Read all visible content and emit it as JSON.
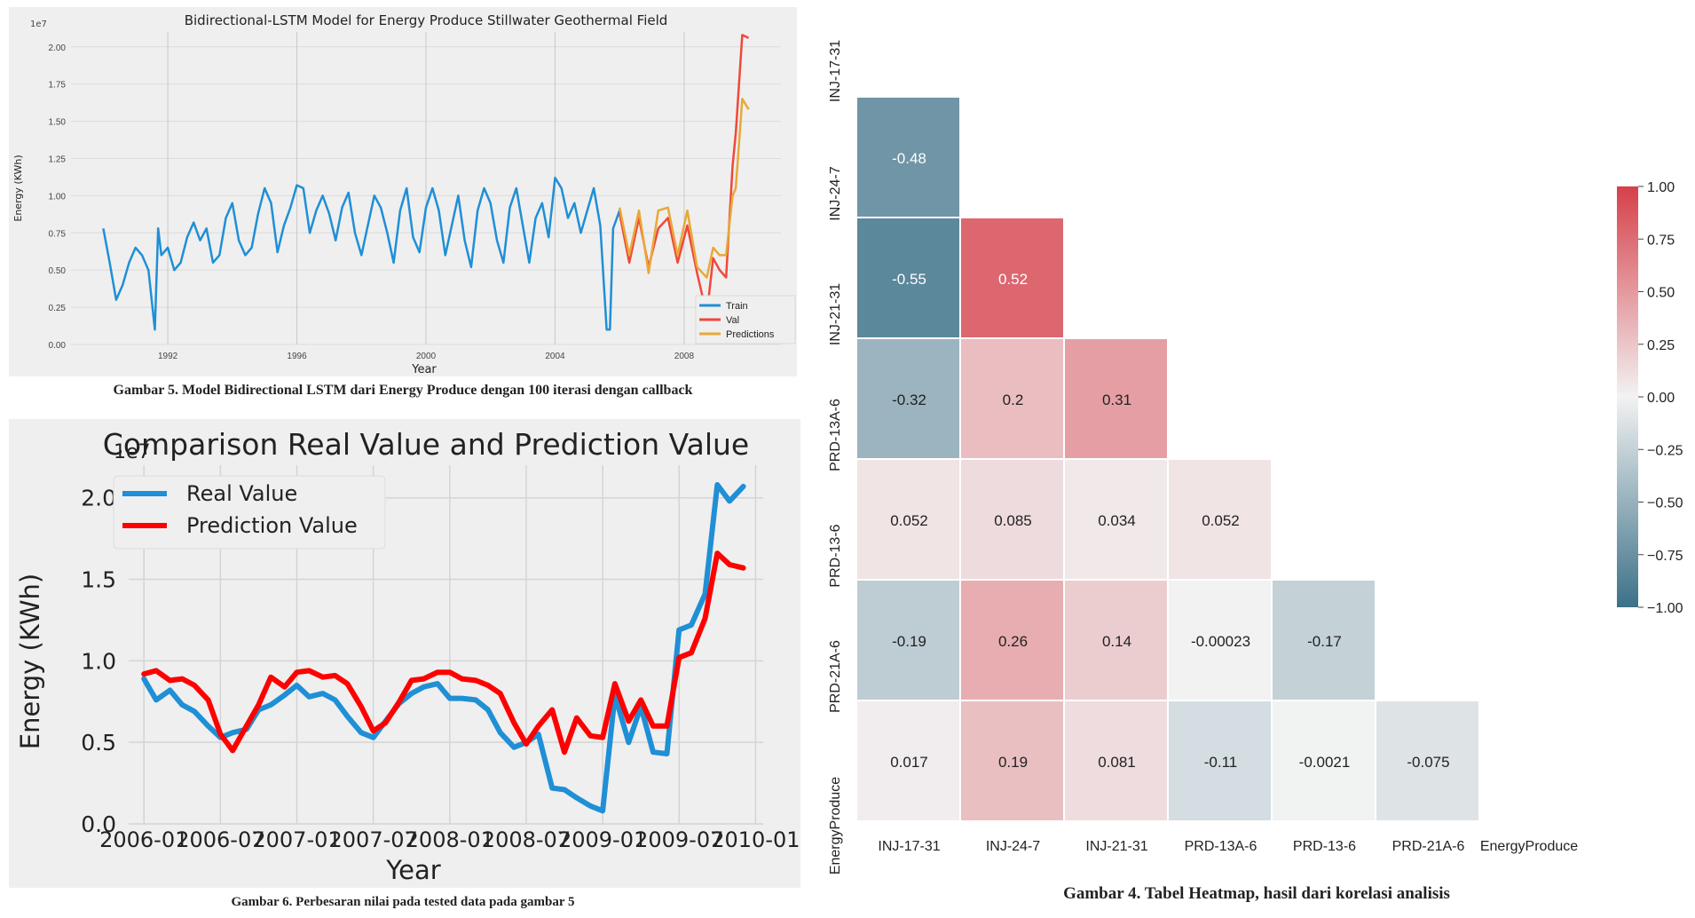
{
  "chart_data": [
    {
      "type": "line",
      "title": "Bidirectional-LSTM Model for Energy Produce Stillwater Geothermal Field",
      "xlabel": "Year",
      "ylabel": "Energy (KWh)",
      "y_offset_label": "1e7",
      "xticks": [
        "1992",
        "1996",
        "2000",
        "2004",
        "2008"
      ],
      "yticks": [
        "0.00",
        "0.25",
        "0.50",
        "0.75",
        "1.00",
        "1.25",
        "1.50",
        "1.75",
        "2.00"
      ],
      "ylim": [
        0,
        2.1
      ],
      "legend": "bottom-right",
      "series": [
        {
          "name": "Train",
          "color": "#1f8fd6",
          "x": [
            1990.0,
            1990.2,
            1990.4,
            1990.6,
            1990.8,
            1991.0,
            1991.2,
            1991.4,
            1991.6,
            1991.7,
            1991.8,
            1992.0,
            1992.2,
            1992.4,
            1992.6,
            1992.8,
            1993.0,
            1993.2,
            1993.4,
            1993.6,
            1993.8,
            1994.0,
            1994.2,
            1994.4,
            1994.6,
            1994.8,
            1995.0,
            1995.2,
            1995.4,
            1995.6,
            1995.8,
            1996.0,
            1996.2,
            1996.4,
            1996.6,
            1996.8,
            1997.0,
            1997.2,
            1997.4,
            1997.6,
            1997.8,
            1998.0,
            1998.2,
            1998.4,
            1998.6,
            1998.8,
            1999.0,
            1999.2,
            1999.4,
            1999.6,
            1999.8,
            2000.0,
            2000.2,
            2000.4,
            2000.6,
            2000.8,
            2001.0,
            2001.2,
            2001.4,
            2001.6,
            2001.8,
            2002.0,
            2002.2,
            2002.4,
            2002.6,
            2002.8,
            2003.0,
            2003.2,
            2003.4,
            2003.6,
            2003.8,
            2004.0,
            2004.2,
            2004.4,
            2004.6,
            2004.8,
            2005.0,
            2005.2,
            2005.4,
            2005.6,
            2005.7,
            2005.8,
            2006.0
          ],
          "values": [
            0.78,
            0.55,
            0.3,
            0.4,
            0.55,
            0.65,
            0.6,
            0.5,
            0.1,
            0.78,
            0.6,
            0.65,
            0.5,
            0.55,
            0.72,
            0.82,
            0.7,
            0.78,
            0.55,
            0.6,
            0.85,
            0.95,
            0.7,
            0.6,
            0.65,
            0.88,
            1.05,
            0.95,
            0.62,
            0.8,
            0.92,
            1.07,
            1.05,
            0.75,
            0.9,
            1.0,
            0.88,
            0.7,
            0.92,
            1.02,
            0.75,
            0.6,
            0.8,
            1.0,
            0.92,
            0.75,
            0.55,
            0.9,
            1.05,
            0.72,
            0.62,
            0.92,
            1.05,
            0.9,
            0.6,
            0.8,
            1.0,
            0.7,
            0.52,
            0.9,
            1.05,
            0.95,
            0.7,
            0.55,
            0.92,
            1.05,
            0.8,
            0.55,
            0.85,
            0.95,
            0.72,
            1.12,
            1.05,
            0.85,
            0.95,
            0.75,
            0.9,
            1.05,
            0.8,
            0.1,
            0.1,
            0.78,
            0.9
          ]
        },
        {
          "name": "Val",
          "color": "#f0483a",
          "x": [
            2006.0,
            2006.3,
            2006.6,
            2006.9,
            2007.2,
            2007.5,
            2007.8,
            2008.1,
            2008.4,
            2008.7,
            2008.9,
            2009.1,
            2009.3,
            2009.5,
            2009.6,
            2009.8,
            2010.0
          ],
          "values": [
            0.88,
            0.55,
            0.85,
            0.52,
            0.78,
            0.85,
            0.55,
            0.8,
            0.48,
            0.2,
            0.58,
            0.5,
            0.45,
            1.2,
            1.42,
            2.08,
            2.06
          ]
        },
        {
          "name": "Predictions",
          "color": "#e8a838",
          "x": [
            2006.0,
            2006.3,
            2006.6,
            2006.9,
            2007.2,
            2007.5,
            2007.8,
            2008.1,
            2008.4,
            2008.7,
            2008.9,
            2009.1,
            2009.3,
            2009.5,
            2009.6,
            2009.8,
            2010.0
          ],
          "values": [
            0.92,
            0.6,
            0.9,
            0.48,
            0.9,
            0.92,
            0.6,
            0.9,
            0.52,
            0.45,
            0.65,
            0.6,
            0.6,
            1.0,
            1.05,
            1.65,
            1.58
          ]
        }
      ],
      "caption": "Gambar 5. Model Bidirectional LSTM dari Energy Produce dengan 100 iterasi dengan callback"
    },
    {
      "type": "line",
      "title": "Comparison Real Value and Prediction Value",
      "xlabel": "Year",
      "ylabel": "Energy (KWh)",
      "y_offset_label": "1e7",
      "xticks": [
        "2006-01",
        "2006-07",
        "2007-01",
        "2007-07",
        "2008-01",
        "2008-07",
        "2009-01",
        "2009-07",
        "2010-01"
      ],
      "yticks": [
        "0.0",
        "0.5",
        "1.0",
        "1.5",
        "2.0"
      ],
      "ylim": [
        0,
        2.2
      ],
      "legend": "top-left",
      "series": [
        {
          "name": "Real Value",
          "color": "#1f8fd6",
          "x": [
            2006.0,
            2006.08,
            2006.17,
            2006.25,
            2006.33,
            2006.42,
            2006.5,
            2006.58,
            2006.67,
            2006.75,
            2006.83,
            2006.92,
            2007.0,
            2007.08,
            2007.17,
            2007.25,
            2007.33,
            2007.42,
            2007.5,
            2007.58,
            2007.67,
            2007.75,
            2007.83,
            2007.92,
            2008.0,
            2008.08,
            2008.17,
            2008.25,
            2008.33,
            2008.42,
            2008.5,
            2008.58,
            2008.67,
            2008.75,
            2008.83,
            2008.92,
            2009.0,
            2009.08,
            2009.17,
            2009.25,
            2009.33,
            2009.42,
            2009.5,
            2009.58,
            2009.67,
            2009.75,
            2009.83,
            2009.92
          ],
          "values": [
            0.89,
            0.76,
            0.82,
            0.73,
            0.69,
            0.6,
            0.53,
            0.56,
            0.58,
            0.7,
            0.73,
            0.79,
            0.85,
            0.78,
            0.8,
            0.76,
            0.66,
            0.56,
            0.53,
            0.63,
            0.74,
            0.8,
            0.84,
            0.86,
            0.77,
            0.77,
            0.76,
            0.7,
            0.56,
            0.47,
            0.5,
            0.55,
            0.22,
            0.21,
            0.16,
            0.11,
            0.08,
            0.79,
            0.5,
            0.72,
            0.44,
            0.43,
            1.19,
            1.22,
            1.41,
            2.08,
            1.98,
            2.07
          ]
        },
        {
          "name": "Prediction Value",
          "color": "#ff0000",
          "x": [
            2006.0,
            2006.08,
            2006.17,
            2006.25,
            2006.33,
            2006.42,
            2006.5,
            2006.58,
            2006.67,
            2006.75,
            2006.83,
            2006.92,
            2007.0,
            2007.08,
            2007.17,
            2007.25,
            2007.33,
            2007.42,
            2007.5,
            2007.58,
            2007.67,
            2007.75,
            2007.83,
            2007.92,
            2008.0,
            2008.08,
            2008.17,
            2008.25,
            2008.33,
            2008.42,
            2008.5,
            2008.58,
            2008.67,
            2008.75,
            2008.83,
            2008.92,
            2009.0,
            2009.08,
            2009.17,
            2009.25,
            2009.33,
            2009.42,
            2009.5,
            2009.58,
            2009.67,
            2009.75,
            2009.83,
            2009.92
          ],
          "values": [
            0.92,
            0.94,
            0.88,
            0.89,
            0.85,
            0.76,
            0.55,
            0.45,
            0.6,
            0.73,
            0.9,
            0.84,
            0.93,
            0.94,
            0.9,
            0.91,
            0.86,
            0.72,
            0.57,
            0.62,
            0.75,
            0.88,
            0.89,
            0.93,
            0.93,
            0.89,
            0.88,
            0.85,
            0.8,
            0.62,
            0.49,
            0.6,
            0.7,
            0.44,
            0.65,
            0.54,
            0.53,
            0.86,
            0.63,
            0.76,
            0.6,
            0.6,
            1.02,
            1.05,
            1.26,
            1.66,
            1.59,
            1.57
          ]
        }
      ],
      "caption": "Gambar 6. Perbesaran nilai pada tested data pada gambar 5"
    },
    {
      "type": "heatmap",
      "xlabels": [
        "INJ-17-31",
        "INJ-24-7",
        "INJ-21-31",
        "PRD-13A-6",
        "PRD-13-6",
        "PRD-21A-6",
        "EnergyProduce"
      ],
      "ylabels": [
        "INJ-17-31",
        "INJ-24-7",
        "INJ-21-31",
        "PRD-13A-6",
        "PRD-13-6",
        "PRD-21A-6",
        "EnergyProduce"
      ],
      "cells": [
        {
          "row": 1,
          "col": 0,
          "label": "-0.48",
          "value": -0.48
        },
        {
          "row": 2,
          "col": 0,
          "label": "-0.55",
          "value": -0.55
        },
        {
          "row": 2,
          "col": 1,
          "label": "0.52",
          "value": 0.52
        },
        {
          "row": 3,
          "col": 0,
          "label": "-0.32",
          "value": -0.32
        },
        {
          "row": 3,
          "col": 1,
          "label": "0.2",
          "value": 0.2
        },
        {
          "row": 3,
          "col": 2,
          "label": "0.31",
          "value": 0.31
        },
        {
          "row": 4,
          "col": 0,
          "label": "0.052",
          "value": 0.052
        },
        {
          "row": 4,
          "col": 1,
          "label": "0.085",
          "value": 0.085
        },
        {
          "row": 4,
          "col": 2,
          "label": "0.034",
          "value": 0.034
        },
        {
          "row": 4,
          "col": 3,
          "label": "0.052",
          "value": 0.052
        },
        {
          "row": 5,
          "col": 0,
          "label": "-0.19",
          "value": -0.19
        },
        {
          "row": 5,
          "col": 1,
          "label": "0.26",
          "value": 0.26
        },
        {
          "row": 5,
          "col": 2,
          "label": "0.14",
          "value": 0.14
        },
        {
          "row": 5,
          "col": 3,
          "label": "-0.00023",
          "value": -0.00023
        },
        {
          "row": 5,
          "col": 4,
          "label": "-0.17",
          "value": -0.17
        },
        {
          "row": 6,
          "col": 0,
          "label": "0.017",
          "value": 0.017
        },
        {
          "row": 6,
          "col": 1,
          "label": "0.19",
          "value": 0.19
        },
        {
          "row": 6,
          "col": 2,
          "label": "0.081",
          "value": 0.081
        },
        {
          "row": 6,
          "col": 3,
          "label": "-0.11",
          "value": -0.11
        },
        {
          "row": 6,
          "col": 4,
          "label": "-0.0021",
          "value": -0.0021
        },
        {
          "row": 6,
          "col": 5,
          "label": "-0.075",
          "value": -0.075
        }
      ],
      "colorbar_ticks": [
        "1.00",
        "0.75",
        "0.50",
        "0.25",
        "0.00",
        "−0.25",
        "−0.50",
        "−0.75",
        "−1.00"
      ],
      "vmin": -1,
      "vmax": 1,
      "color_negative": "#3c7188",
      "color_positive": "#d6404a",
      "caption": "Gambar 4. Tabel Heatmap, hasil dari korelasi analisis"
    }
  ]
}
